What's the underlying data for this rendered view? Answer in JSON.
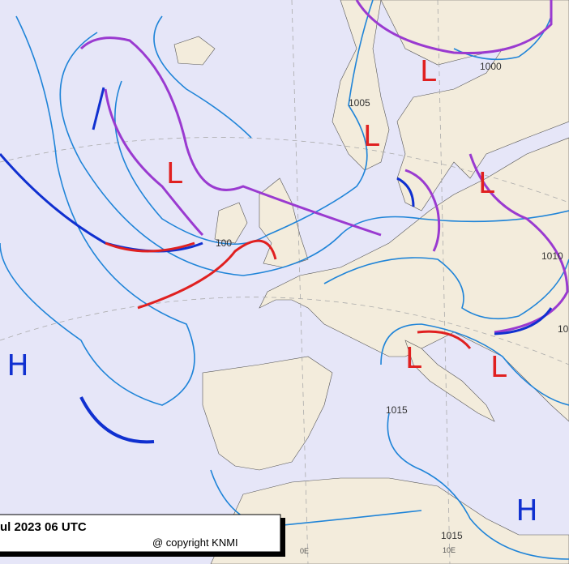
{
  "map": {
    "pressure_centers": [
      "H",
      "H",
      "L",
      "L",
      "L",
      "L",
      "L",
      "L"
    ],
    "isobar_labels": [
      "1000",
      "1005",
      "100",
      "1010",
      "10",
      "1015",
      "1015"
    ],
    "meridian_labels": [
      "0E",
      "10E"
    ],
    "caption": {
      "title": "ul 2023 06 UTC",
      "copyright": "@ copyright KNMI"
    }
  }
}
